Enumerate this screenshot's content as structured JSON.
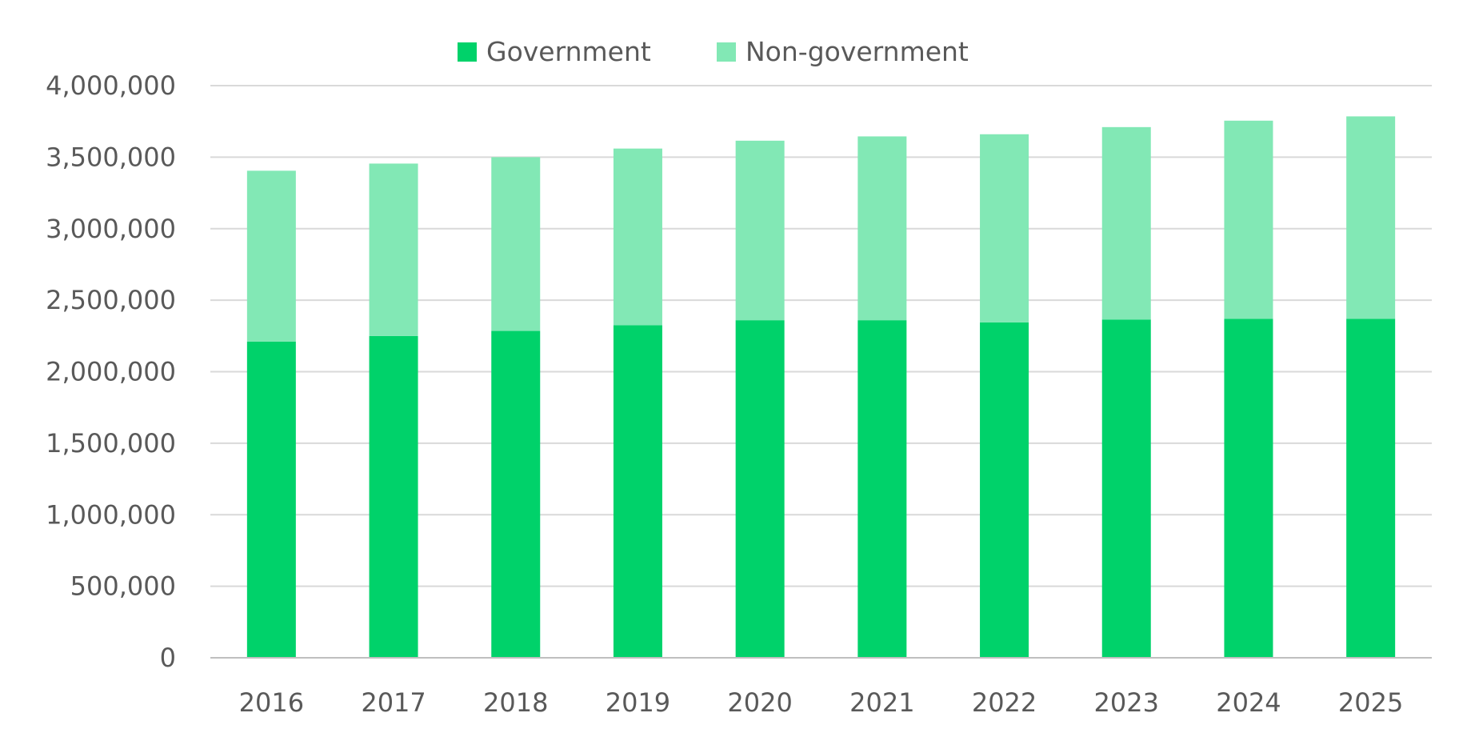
{
  "chart_data": {
    "type": "bar",
    "stacked": true,
    "categories": [
      "2016",
      "2017",
      "2018",
      "2019",
      "2020",
      "2021",
      "2022",
      "2023",
      "2024",
      "2025"
    ],
    "series": [
      {
        "name": "Government",
        "color": "#00D26A",
        "values": [
          2210000,
          2250000,
          2285000,
          2325000,
          2360000,
          2360000,
          2345000,
          2365000,
          2370000,
          2370000
        ]
      },
      {
        "name": "Non-government",
        "color": "#82E8B5",
        "values": [
          1195000,
          1205000,
          1215000,
          1235000,
          1255000,
          1285000,
          1315000,
          1345000,
          1385000,
          1415000
        ]
      }
    ],
    "ylim": [
      0,
      4000000
    ],
    "y_ticks": [
      {
        "value": 0,
        "label": "0"
      },
      {
        "value": 500000,
        "label": "500,000"
      },
      {
        "value": 1000000,
        "label": "1,000,000"
      },
      {
        "value": 1500000,
        "label": "1,500,000"
      },
      {
        "value": 2000000,
        "label": "2,000,000"
      },
      {
        "value": 2500000,
        "label": "2,500,000"
      },
      {
        "value": 3000000,
        "label": "3,000,000"
      },
      {
        "value": 3500000,
        "label": "3,500,000"
      },
      {
        "value": 4000000,
        "label": "4,000,000"
      }
    ],
    "title": "",
    "xlabel": "",
    "ylabel": "",
    "grid": true,
    "legend_position": "top-center",
    "gridline_color": "#D9D9D9",
    "axis_color": "#BFBFBF",
    "text_color": "#595959"
  }
}
